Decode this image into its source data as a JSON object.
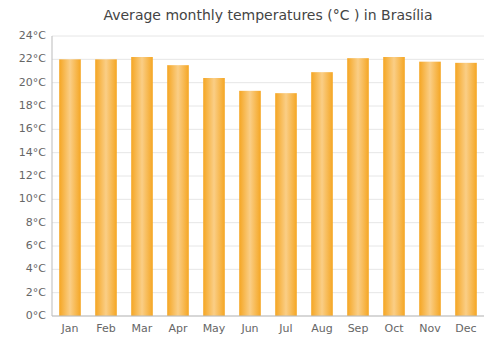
{
  "chart_data": {
    "type": "bar",
    "title": "Average monthly temperatures (°C ) in Brasília",
    "categories": [
      "Jan",
      "Feb",
      "Mar",
      "Apr",
      "May",
      "Jun",
      "Jul",
      "Aug",
      "Sep",
      "Oct",
      "Nov",
      "Dec"
    ],
    "values": [
      22.0,
      22.0,
      22.2,
      21.5,
      20.4,
      19.3,
      19.1,
      20.9,
      22.1,
      22.2,
      21.8,
      21.7
    ],
    "color": "#F5A623",
    "ylim": [
      0,
      24
    ],
    "yticks": [
      {
        "value": 0,
        "label": "0°C"
      },
      {
        "value": 2,
        "label": "2°C"
      },
      {
        "value": 4,
        "label": "4°C"
      },
      {
        "value": 6,
        "label": "6°C"
      },
      {
        "value": 8,
        "label": "8°C"
      },
      {
        "value": 10,
        "label": "10°C"
      },
      {
        "value": 12,
        "label": "12°C"
      },
      {
        "value": 14,
        "label": "14°C"
      },
      {
        "value": 16,
        "label": "16°C"
      },
      {
        "value": 18,
        "label": "18°C"
      },
      {
        "value": 20,
        "label": "20°C"
      },
      {
        "value": 22,
        "label": "22°C"
      },
      {
        "value": 24,
        "label": "24°C"
      }
    ],
    "grid": true
  }
}
